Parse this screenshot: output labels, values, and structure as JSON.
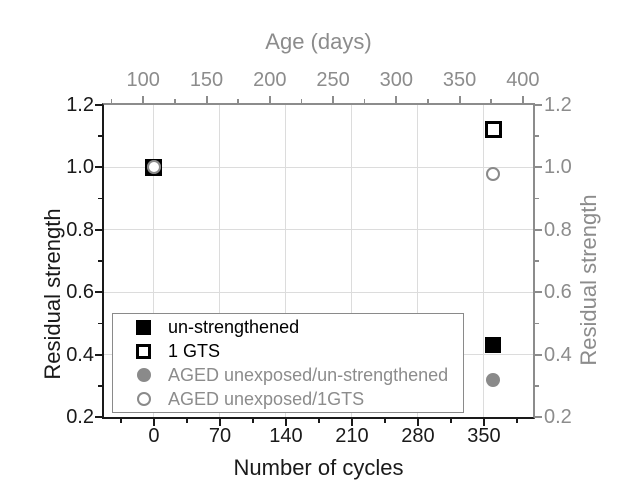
{
  "background_color": "#ffffff",
  "accent_gray": "#8c8c8c",
  "chart_data": {
    "type": "scatter",
    "title": "",
    "axes": {
      "top": {
        "label": "Age (days)",
        "range": [
          69,
          408
        ],
        "ticks": [
          100,
          150,
          200,
          250,
          300,
          350,
          400
        ],
        "tick_labels": [
          "100",
          "150",
          "200",
          "250",
          "300",
          "350",
          "400"
        ],
        "minor_ticks": [
          75,
          125,
          175,
          225,
          275,
          325,
          375
        ],
        "color": "#8c8c8c"
      },
      "bottom": {
        "label": "Number of cycles",
        "range": [
          -53,
          402
        ],
        "ticks": [
          0,
          70,
          140,
          210,
          280,
          350
        ],
        "tick_labels": [
          "0",
          "70",
          "140",
          "210",
          "280",
          "350"
        ],
        "minor_ticks": [
          -35,
          35,
          105,
          175,
          245,
          315,
          385
        ],
        "color": "#1a1a1a"
      },
      "left": {
        "label": "Residual strength",
        "range": [
          0.2,
          1.2
        ],
        "ticks": [
          0.2,
          0.4,
          0.6,
          0.8,
          1.0,
          1.2
        ],
        "tick_labels": [
          "0.2",
          "0.4",
          "0.6",
          "0.8",
          "1.0",
          "1.2"
        ],
        "minor_ticks": [
          0.3,
          0.5,
          0.7,
          0.9,
          1.1
        ],
        "color": "#1a1a1a"
      },
      "right": {
        "label": "Residual strength",
        "range": [
          0.2,
          1.2
        ],
        "ticks": [
          0.2,
          0.4,
          0.6,
          0.8,
          1.0,
          1.2
        ],
        "tick_labels": [
          "0.2",
          "0.4",
          "0.6",
          "0.8",
          "1.0",
          "1.2"
        ],
        "minor_ticks": [
          0.3,
          0.5,
          0.7,
          0.9,
          1.1
        ],
        "color": "#8c8c8c"
      }
    },
    "grid": {
      "vertical_at_cycles": [
        0,
        70,
        140,
        210,
        280,
        350
      ],
      "horizontal_at": [
        0.4,
        0.6,
        0.8,
        1.0
      ],
      "color": "#dcdcdc"
    },
    "series": [
      {
        "name": "un-strengthened",
        "marker": "square-filled",
        "color": "#000000",
        "points": [
          {
            "cycles": 0,
            "age_days": 107,
            "residual_strength": 1.0
          },
          {
            "cycles": 360,
            "age_days": 372,
            "residual_strength": 0.43
          }
        ]
      },
      {
        "name": "1 GTS",
        "marker": "square-open",
        "color": "#000000",
        "points": [
          {
            "cycles": 0,
            "age_days": 107,
            "residual_strength": 1.0
          },
          {
            "cycles": 360,
            "age_days": 372,
            "residual_strength": 1.12
          }
        ]
      },
      {
        "name": "AGED unexposed/un-strengthened",
        "marker": "circle-filled",
        "color": "#8c8c8c",
        "points": [
          {
            "cycles": 0,
            "age_days": 107,
            "residual_strength": 1.0
          },
          {
            "cycles": 360,
            "age_days": 372,
            "residual_strength": 0.32
          }
        ]
      },
      {
        "name": "AGED unexposed/1GTS",
        "marker": "circle-open",
        "color": "#8c8c8c",
        "points": [
          {
            "cycles": 0,
            "age_days": 107,
            "residual_strength": 1.0
          },
          {
            "cycles": 360,
            "age_days": 372,
            "residual_strength": 0.98
          }
        ]
      }
    ],
    "legend": {
      "position": "bottom-left",
      "items": [
        {
          "marker": "square-filled",
          "label": "un-strengthened",
          "text_color": "#000000"
        },
        {
          "marker": "square-open",
          "label": "1 GTS",
          "text_color": "#000000"
        },
        {
          "marker": "circle-filled",
          "label": "AGED unexposed/un-strengthened",
          "text_color": "#8c8c8c"
        },
        {
          "marker": "circle-open",
          "label": "AGED unexposed/1GTS",
          "text_color": "#8c8c8c"
        }
      ]
    }
  }
}
